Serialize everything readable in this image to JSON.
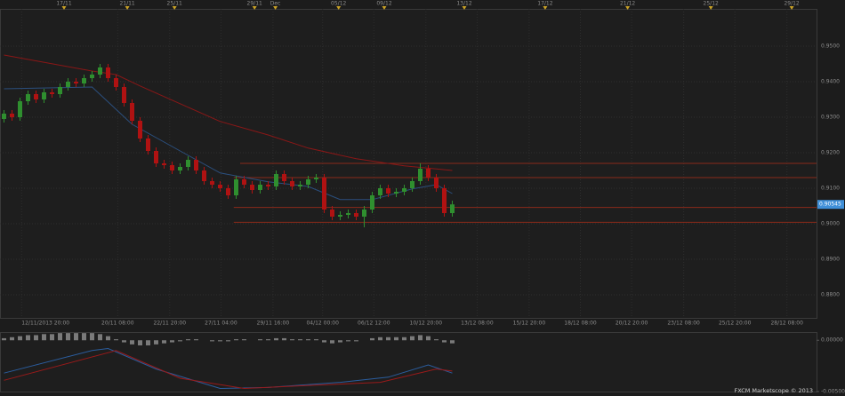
{
  "chart_data": [
    {
      "type": "candlestick",
      "x": [
        0,
        1,
        2,
        3,
        4,
        5,
        6,
        7,
        8,
        9,
        10,
        11,
        12,
        13,
        14,
        15,
        16,
        17,
        18,
        19,
        20,
        21,
        22,
        23,
        24,
        25,
        26,
        27,
        28,
        29,
        30,
        31,
        32,
        33,
        34,
        35,
        36,
        37,
        38,
        39,
        40,
        41,
        42,
        43,
        44,
        45,
        46,
        47,
        48,
        49,
        50,
        51,
        52,
        53,
        54,
        55,
        56
      ],
      "open": [
        0.9295,
        0.931,
        0.93,
        0.9345,
        0.9365,
        0.935,
        0.937,
        0.9365,
        0.9385,
        0.94,
        0.9395,
        0.941,
        0.942,
        0.944,
        0.941,
        0.9385,
        0.934,
        0.929,
        0.924,
        0.9205,
        0.917,
        0.9165,
        0.915,
        0.916,
        0.918,
        0.915,
        0.912,
        0.911,
        0.91,
        0.908,
        0.9125,
        0.911,
        0.9095,
        0.911,
        0.9105,
        0.914,
        0.912,
        0.9105,
        0.911,
        0.9125,
        0.913,
        0.904,
        0.902,
        0.9025,
        0.903,
        0.902,
        0.904,
        0.908,
        0.91,
        0.9085,
        0.909,
        0.91,
        0.912,
        0.9155,
        0.913,
        0.91,
        0.903
      ],
      "high": [
        0.932,
        0.932,
        0.9355,
        0.9375,
        0.9375,
        0.938,
        0.938,
        0.9395,
        0.941,
        0.941,
        0.942,
        0.943,
        0.945,
        0.945,
        0.942,
        0.9395,
        0.935,
        0.93,
        0.925,
        0.9215,
        0.918,
        0.9175,
        0.917,
        0.919,
        0.919,
        0.916,
        0.913,
        0.912,
        0.911,
        0.9135,
        0.9135,
        0.912,
        0.912,
        0.912,
        0.915,
        0.915,
        0.913,
        0.912,
        0.9135,
        0.914,
        0.914,
        0.905,
        0.9035,
        0.904,
        0.904,
        0.905,
        0.909,
        0.911,
        0.911,
        0.91,
        0.911,
        0.913,
        0.917,
        0.9165,
        0.914,
        0.911,
        0.9065
      ],
      "low": [
        0.9285,
        0.929,
        0.929,
        0.9335,
        0.934,
        0.934,
        0.9355,
        0.9355,
        0.9375,
        0.9385,
        0.9385,
        0.94,
        0.941,
        0.94,
        0.9375,
        0.933,
        0.928,
        0.923,
        0.9195,
        0.916,
        0.9155,
        0.914,
        0.914,
        0.915,
        0.914,
        0.911,
        0.91,
        0.909,
        0.907,
        0.907,
        0.91,
        0.9085,
        0.9085,
        0.9095,
        0.9095,
        0.911,
        0.9095,
        0.9095,
        0.91,
        0.9115,
        0.903,
        0.901,
        0.901,
        0.9015,
        0.901,
        0.899,
        0.903,
        0.907,
        0.9075,
        0.9075,
        0.908,
        0.909,
        0.911,
        0.912,
        0.909,
        0.902,
        0.902
      ],
      "close": [
        0.931,
        0.93,
        0.9345,
        0.9365,
        0.935,
        0.937,
        0.9365,
        0.9385,
        0.94,
        0.9395,
        0.941,
        0.942,
        0.944,
        0.941,
        0.9385,
        0.934,
        0.929,
        0.924,
        0.9205,
        0.917,
        0.9165,
        0.915,
        0.916,
        0.918,
        0.915,
        0.912,
        0.911,
        0.91,
        0.908,
        0.9125,
        0.911,
        0.9095,
        0.911,
        0.9105,
        0.914,
        0.912,
        0.9105,
        0.911,
        0.9125,
        0.913,
        0.904,
        0.902,
        0.9025,
        0.903,
        0.902,
        0.904,
        0.908,
        0.91,
        0.9085,
        0.909,
        0.91,
        0.912,
        0.9155,
        0.913,
        0.91,
        0.903,
        0.90545
      ],
      "up_color": "#2f8f2f",
      "down_color": "#b01212",
      "xlim": [
        -0.5,
        101.5
      ],
      "ylim": [
        0.8735,
        0.9605
      ],
      "yticks": [
        {
          "value": 0.88,
          "label": "0.8800"
        },
        {
          "value": 0.89,
          "label": "0.8900"
        },
        {
          "value": 0.9,
          "label": "0.9000"
        },
        {
          "value": 0.91,
          "label": "0.9100"
        },
        {
          "value": 0.92,
          "label": "0.9200"
        },
        {
          "value": 0.93,
          "label": "0.9300"
        },
        {
          "value": 0.94,
          "label": "0.9400"
        },
        {
          "value": 0.95,
          "label": "0.9500"
        }
      ],
      "xticks": [
        {
          "value": 2.2,
          "label": "12/11/2013 20:00"
        },
        {
          "value": 14.2,
          "label": "20/11 08:00"
        },
        {
          "value": 20.7,
          "label": "22/11 20:00"
        },
        {
          "value": 27.1,
          "label": "27/11 04:00"
        },
        {
          "value": 33.6,
          "label": "29/11 16:00"
        },
        {
          "value": 39.8,
          "label": "04/12 00:00"
        },
        {
          "value": 46.2,
          "label": "06/12 12:00"
        },
        {
          "value": 52.7,
          "label": "10/12 20:00"
        },
        {
          "value": 59.1,
          "label": "13/12 08:00"
        },
        {
          "value": 65.6,
          "label": "15/12 20:00"
        },
        {
          "value": 72,
          "label": "18/12 08:00"
        },
        {
          "value": 78.4,
          "label": "20/12 20:00"
        },
        {
          "value": 84.9,
          "label": "23/12 08:00"
        },
        {
          "value": 91.3,
          "label": "25/12 20:00"
        },
        {
          "value": 97.8,
          "label": "28/12 08:00"
        }
      ],
      "x2ticks": [
        {
          "value": 7.5,
          "label": "17/11"
        },
        {
          "value": 15.4,
          "label": "21/11"
        },
        {
          "value": 21.3,
          "label": "25/11"
        },
        {
          "value": 31.3,
          "label": "29/11"
        },
        {
          "value": 33.9,
          "label": "Dec"
        },
        {
          "value": 41.8,
          "label": "05/12"
        },
        {
          "value": 47.5,
          "label": "09/12"
        },
        {
          "value": 57.5,
          "label": "13/12"
        },
        {
          "value": 67.6,
          "label": "17/12"
        },
        {
          "value": 77.9,
          "label": "21/12"
        },
        {
          "value": 88.3,
          "label": "25/12"
        },
        {
          "value": 98.4,
          "label": "29/12"
        }
      ],
      "overlays": [
        {
          "color": "#8a1717",
          "x": [
            0,
            11,
            14,
            17,
            22,
            27,
            33,
            38,
            44,
            50,
            56
          ],
          "values": [
            0.9475,
            0.943,
            0.942,
            0.9388,
            0.9338,
            0.9288,
            0.925,
            0.9213,
            0.9183,
            0.9163,
            0.915
          ]
        },
        {
          "color": "#2b4f7e",
          "x": [
            0,
            11,
            16,
            22,
            27,
            33,
            38,
            42,
            46,
            51,
            54,
            56
          ],
          "values": [
            0.938,
            0.9385,
            0.928,
            0.9205,
            0.9143,
            0.9118,
            0.9105,
            0.9068,
            0.9068,
            0.9098,
            0.911,
            0.9085
          ]
        }
      ],
      "levels": [
        {
          "value": 0.917,
          "x": 29.5
        },
        {
          "value": 0.913,
          "x": 28.7
        },
        {
          "value": 0.9046,
          "x": 28.7
        },
        {
          "value": 0.9004,
          "x": 28.7
        }
      ],
      "level_color": "#8a2a1a",
      "current_price": 0.90545,
      "grid": true
    },
    {
      "type": "macd",
      "x": [
        0,
        1,
        2,
        3,
        4,
        5,
        6,
        7,
        8,
        9,
        10,
        11,
        12,
        13,
        14,
        15,
        16,
        17,
        18,
        19,
        20,
        21,
        22,
        23,
        24,
        25,
        26,
        27,
        28,
        29,
        30,
        31,
        32,
        33,
        34,
        35,
        36,
        37,
        38,
        39,
        40,
        41,
        42,
        43,
        44,
        45,
        46,
        47,
        48,
        49,
        50,
        51,
        52,
        53,
        54,
        55,
        56
      ],
      "histogram": [
        0.0002,
        0.0003,
        0.0004,
        0.0005,
        0.0005,
        0.0006,
        0.0006,
        0.0007,
        0.0007,
        0.0007,
        0.0007,
        0.0007,
        0.0006,
        0.0004,
        0.0001,
        -0.0002,
        -0.0004,
        -0.0005,
        -0.0005,
        -0.0004,
        -0.0003,
        -0.0002,
        -0.0001,
        0.0001,
        0.0001,
        0,
        -0.0001,
        -0.0001,
        -0.0001,
        0.0001,
        0.0001,
        0,
        0.0001,
        0.0001,
        0.0002,
        0.0002,
        0.0001,
        0.0001,
        0.0001,
        0.0001,
        -0.0002,
        -0.0003,
        -0.0002,
        -0.0001,
        -0.0001,
        0,
        0.0002,
        0.0003,
        0.0003,
        0.0003,
        0.0003,
        0.0004,
        0.0005,
        0.0004,
        0.0001,
        -0.0002,
        -0.0003
      ],
      "histogram_color": "#7a7a7a",
      "series": [
        {
          "color": "#2b5d9e",
          "x": [
            0,
            11,
            13,
            19,
            27,
            33,
            42,
            48,
            53,
            56
          ],
          "values": [
            -0.0032,
            -0.001,
            -0.0008,
            -0.0028,
            -0.0047,
            -0.0046,
            -0.0041,
            -0.0036,
            -0.0024,
            -0.0032
          ]
        },
        {
          "color": "#9a1a1a",
          "x": [
            0,
            14,
            22,
            30,
            38,
            47,
            54,
            56
          ],
          "values": [
            -0.0039,
            -0.001,
            -0.0037,
            -0.0047,
            -0.0044,
            -0.0041,
            -0.0028,
            -0.003
          ]
        }
      ],
      "xlim": [
        -0.5,
        101.5
      ],
      "ylim": [
        -0.005,
        0.0008
      ],
      "yticks": [
        {
          "value": 0,
          "label": "0.00000"
        },
        {
          "value": -0.005,
          "label": "-0.00500"
        }
      ]
    }
  ],
  "footer": "FXCM Marketscope © 2013"
}
